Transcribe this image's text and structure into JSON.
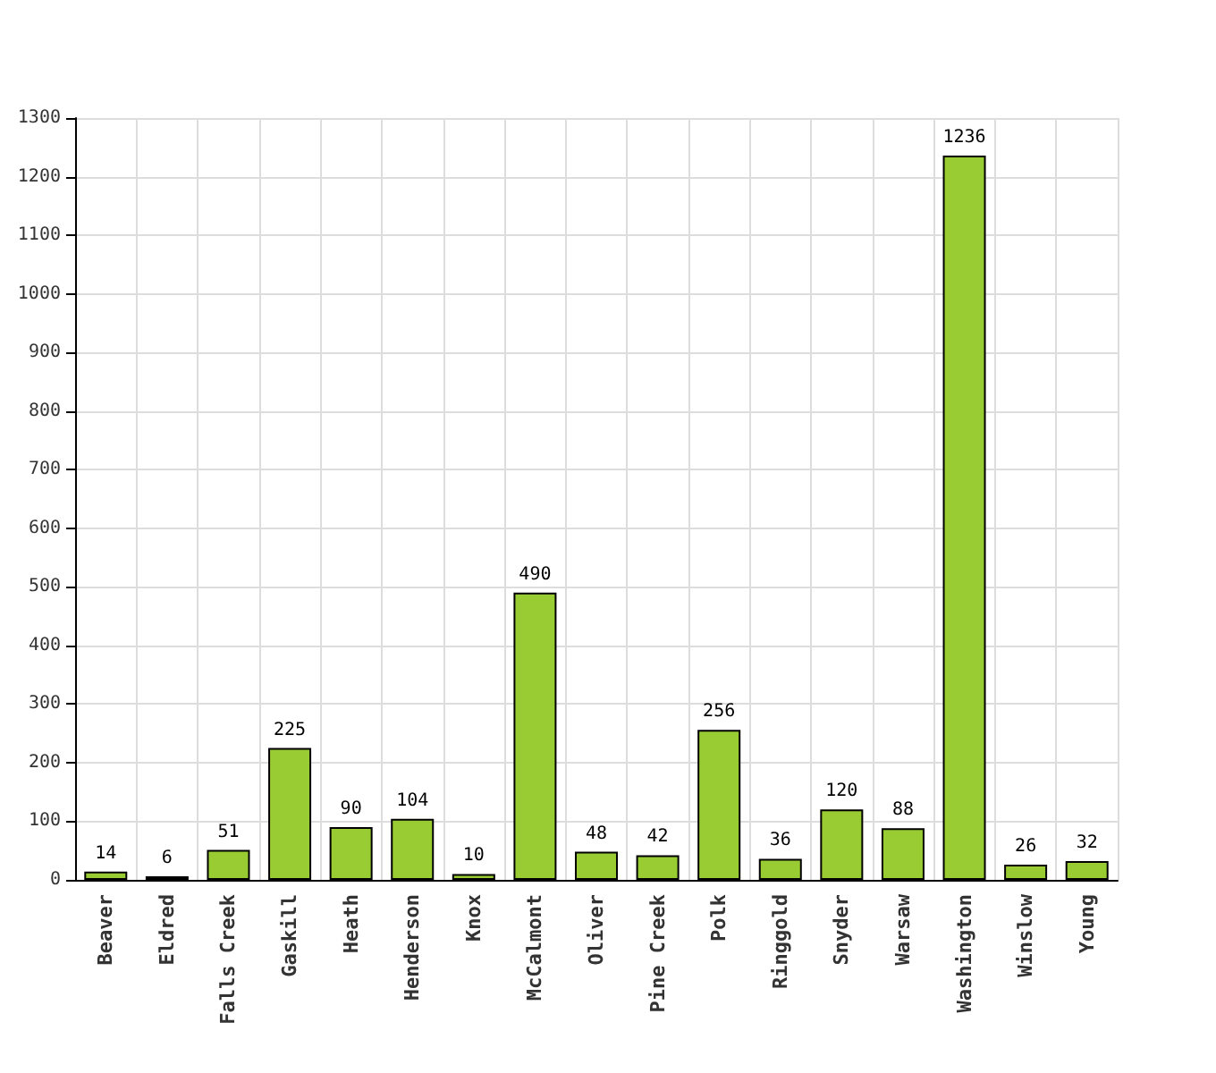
{
  "chart_data": {
    "type": "bar",
    "categories": [
      "Beaver",
      "Eldred",
      "Falls Creek",
      "Gaskill",
      "Heath",
      "Henderson",
      "Knox",
      "McCalmont",
      "Oliver",
      "Pine Creek",
      "Polk",
      "Ringgold",
      "Snyder",
      "Warsaw",
      "Washington",
      "Winslow",
      "Young"
    ],
    "values": [
      14,
      6,
      51,
      225,
      90,
      104,
      10,
      490,
      48,
      42,
      256,
      36,
      120,
      88,
      1236,
      26,
      32
    ],
    "color": "#99cc33",
    "ylim": [
      0,
      1300
    ],
    "yticks": [
      0,
      100,
      200,
      300,
      400,
      500,
      600,
      700,
      800,
      900,
      1000,
      1100,
      1200,
      1300
    ],
    "grid": true,
    "data_labels": true
  }
}
